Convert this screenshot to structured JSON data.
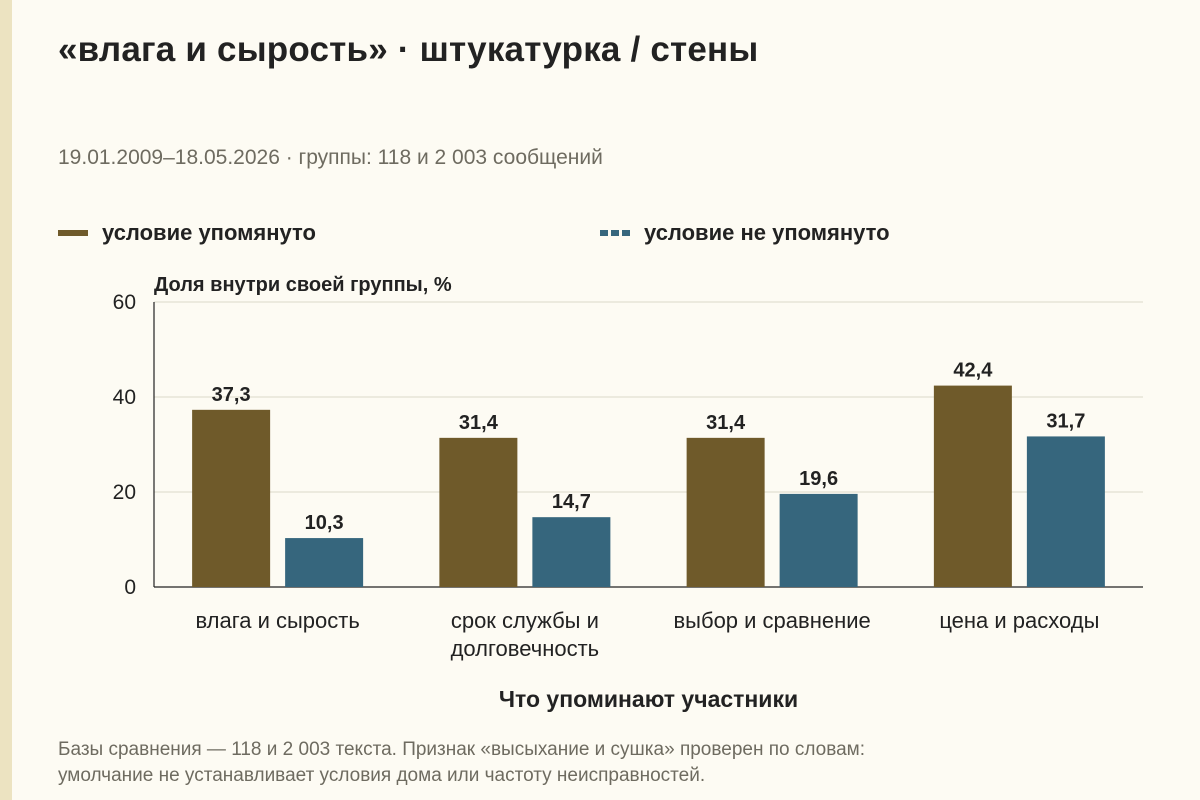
{
  "header": {
    "title": "«влага и сырость» · штукатурка / стены",
    "subtitle": "19.01.2009–18.05.2026 · группы: 118 и 2 003 сообщений"
  },
  "legend": [
    {
      "label": "условие упомянуто",
      "color": "#6f5a2a",
      "style": "solid"
    },
    {
      "label": "условие не упомянуто",
      "color": "#36667d",
      "style": "dashed"
    }
  ],
  "footnote": {
    "line1": "Базы сравнения — 118 и 2 003 текста. Признак «высыхание и сушка» проверен по словам:",
    "line2": "умолчание не устанавливает условия дома или частоту неисправностей."
  },
  "chart_data": {
    "type": "bar",
    "ylabel": "Доля внутри своей группы, %",
    "xlabel": "Что упоминают участники",
    "ylim": [
      0,
      60
    ],
    "yticks": [
      "0",
      "20",
      "40",
      "60"
    ],
    "grid": true,
    "legend_position": "top",
    "categories": [
      [
        "влага и сырость"
      ],
      [
        "срок службы и",
        "долговечность"
      ],
      [
        "выбор и сравнение"
      ],
      [
        "цена и расходы"
      ]
    ],
    "series": [
      {
        "name": "условие упомянуто",
        "color": "#6f5a2a",
        "values": [
          37.3,
          31.4,
          31.4,
          42.4
        ],
        "labels": [
          "37,3",
          "31,4",
          "31,4",
          "42,4"
        ]
      },
      {
        "name": "условие не упомянуто",
        "color": "#36667d",
        "values": [
          10.3,
          14.7,
          19.6,
          31.7
        ],
        "labels": [
          "10,3",
          "14,7",
          "19,6",
          "31,7"
        ]
      }
    ]
  }
}
